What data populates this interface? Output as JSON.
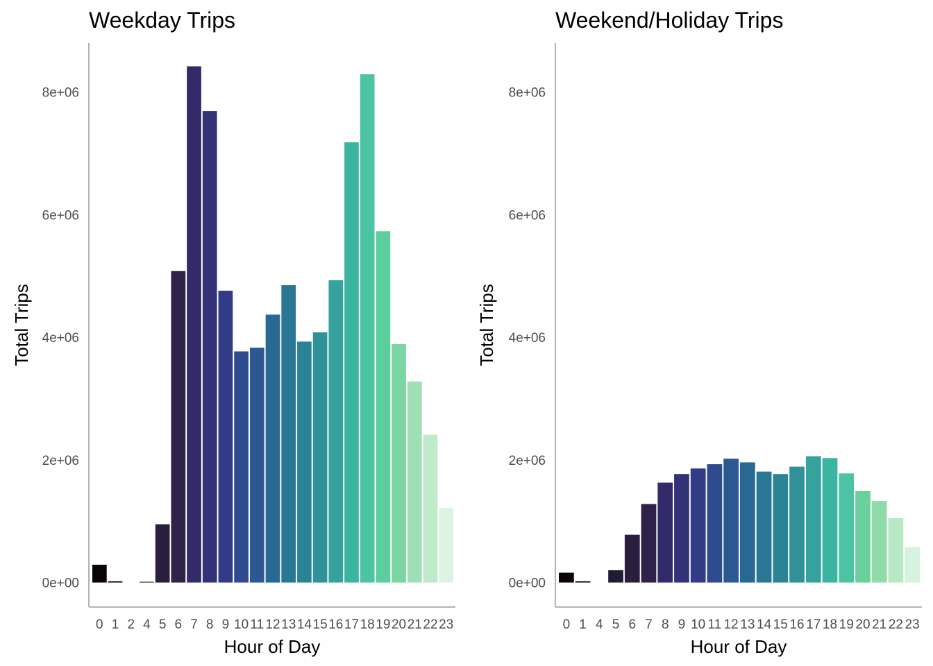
{
  "chart_data": [
    {
      "type": "bar",
      "title": "Weekday Trips",
      "xlabel": "Hour of Day",
      "ylabel": "Total Trips",
      "ylim": [
        -400000,
        8800000
      ],
      "yticks": [
        0,
        2000000,
        4000000,
        6000000,
        8000000
      ],
      "ytick_labels": [
        "0e+00",
        "2e+06",
        "4e+06",
        "6e+06",
        "8e+06"
      ],
      "grid": false,
      "categories": [
        "0",
        "1",
        "2",
        "4",
        "5",
        "6",
        "7",
        "8",
        "9",
        "10",
        "11",
        "12",
        "13",
        "14",
        "15",
        "16",
        "17",
        "18",
        "19",
        "20",
        "21",
        "22",
        "23"
      ],
      "values": [
        290000,
        20000,
        0,
        12000,
        950000,
        5080000,
        8420000,
        7690000,
        4760000,
        3770000,
        3830000,
        4370000,
        4850000,
        3930000,
        4080000,
        4930000,
        7180000,
        8290000,
        5730000,
        3890000,
        3280000,
        2410000,
        1220000
      ],
      "colors": [
        "#0b0405",
        "#130d18",
        "#1d1528",
        "#231b34",
        "#2a1d3e",
        "#2f2148",
        "#332a6a",
        "#333276",
        "#323b86",
        "#2e4b8f",
        "#2b5891",
        "#2a6894",
        "#2a7795",
        "#2b8396",
        "#30919a",
        "#35a29e",
        "#3bb4a0",
        "#4cc3a3",
        "#5ccd9d",
        "#7bd6a3",
        "#9ee0b4",
        "#bfebca",
        "#dcf5e2"
      ]
    },
    {
      "type": "bar",
      "title": "Weekend/Holiday Trips",
      "xlabel": "Hour of Day",
      "ylabel": "Total Trips",
      "ylim": [
        -400000,
        8800000
      ],
      "yticks": [
        0,
        2000000,
        4000000,
        6000000,
        8000000
      ],
      "ytick_labels": [
        "0e+00",
        "2e+06",
        "4e+06",
        "6e+06",
        "8e+06"
      ],
      "grid": false,
      "categories": [
        "0",
        "1",
        "4",
        "5",
        "6",
        "7",
        "8",
        "9",
        "10",
        "11",
        "12",
        "13",
        "14",
        "15",
        "16",
        "17",
        "18",
        "19",
        "20",
        "21",
        "22",
        "23"
      ],
      "values": [
        160000,
        20000,
        0,
        200000,
        780000,
        1280000,
        1630000,
        1770000,
        1860000,
        1930000,
        2020000,
        1960000,
        1810000,
        1770000,
        1890000,
        2060000,
        2030000,
        1780000,
        1490000,
        1330000,
        1050000,
        580000
      ],
      "colors": [
        "#0b0405",
        "#130d18",
        "#1d1528",
        "#231b34",
        "#2a1d3e",
        "#2f2148",
        "#332a6a",
        "#333276",
        "#323b86",
        "#2e4b8f",
        "#2b5891",
        "#2a6894",
        "#2a7795",
        "#2b8396",
        "#30919a",
        "#35a29e",
        "#3bb4a0",
        "#4cc3a3",
        "#6ad09c",
        "#8fdca9",
        "#b7e9c4",
        "#d6f3df"
      ]
    }
  ]
}
